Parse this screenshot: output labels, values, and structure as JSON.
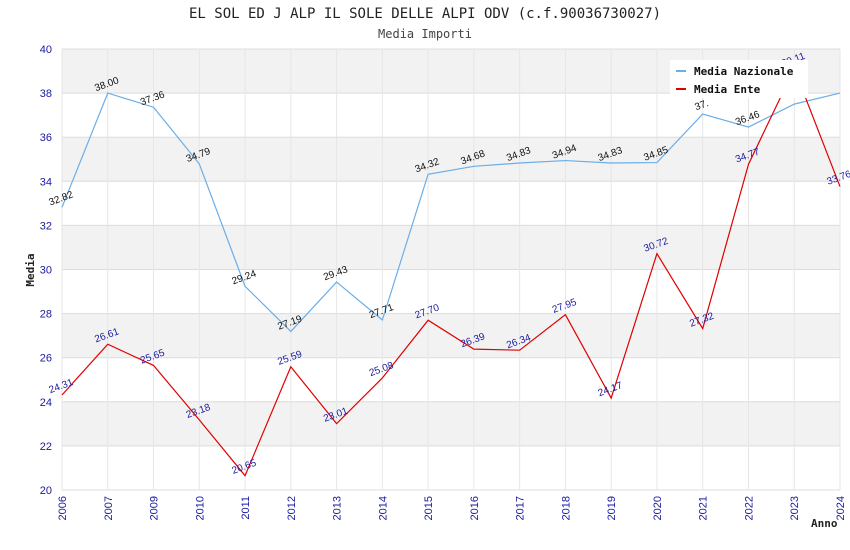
{
  "chart_data": {
    "type": "line",
    "title": "EL SOL ED J ALP IL SOLE DELLE ALPI ODV (c.f.90036730027)",
    "subtitle": "Media Importi",
    "xlabel": "Anno",
    "ylabel": "Media",
    "categories": [
      "2006",
      "2007",
      "2009",
      "2010",
      "2011",
      "2012",
      "2013",
      "2014",
      "2015",
      "2016",
      "2017",
      "2018",
      "2019",
      "2020",
      "2021",
      "2022",
      "2023",
      "2024"
    ],
    "ylim": [
      20,
      40
    ],
    "yticks": [
      "20",
      "22",
      "24",
      "26",
      "28",
      "30",
      "32",
      "34",
      "36",
      "38",
      "40"
    ],
    "grid": true,
    "legend_position": "top-right",
    "series": [
      {
        "name": "Media Nazionale",
        "color": "#6aaee8",
        "values": [
          32.82,
          38.0,
          37.36,
          34.79,
          29.24,
          27.19,
          29.43,
          27.71,
          34.32,
          34.68,
          34.83,
          34.94,
          34.83,
          34.85,
          37.05,
          36.46,
          37.5,
          38.0
        ],
        "labels": [
          "32.82",
          "38.00",
          "37.36",
          "34.79",
          "29.24",
          "27.19",
          "29.43",
          "27.71",
          "34.32",
          "34.68",
          "34.83",
          "34.94",
          "34.83",
          "34.85",
          "37.",
          "36.46",
          "",
          ""
        ]
      },
      {
        "name": "Media Ente",
        "color": "#e00000",
        "values": [
          24.31,
          26.61,
          25.65,
          23.18,
          20.65,
          25.59,
          23.01,
          25.08,
          27.7,
          26.39,
          26.34,
          27.95,
          24.17,
          30.72,
          27.32,
          34.77,
          39.11,
          33.76
        ],
        "labels": [
          "24.31",
          "26.61",
          "25.65",
          "23.18",
          "20.65",
          "25.59",
          "23.01",
          "25.08",
          "27.70",
          "26.39",
          "26.34",
          "27.95",
          "24.17",
          "30.72",
          "27.32",
          "34.77",
          "39.11",
          "33.76"
        ]
      }
    ]
  }
}
